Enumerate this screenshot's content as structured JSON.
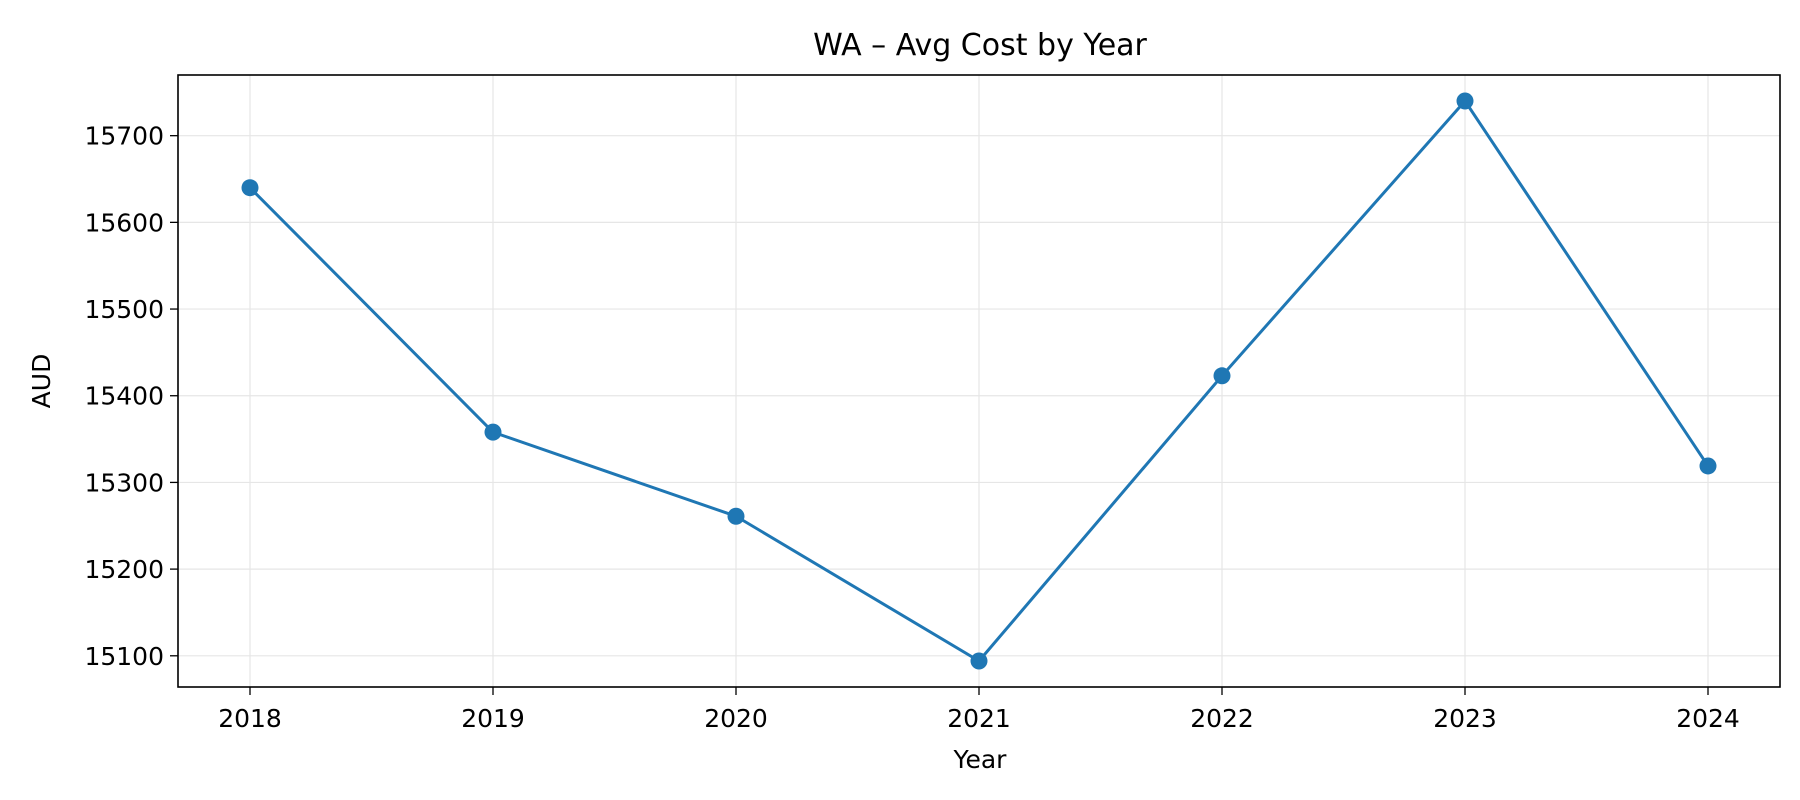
{
  "chart_data": {
    "type": "line",
    "title": "WA – Avg Cost by Year",
    "xlabel": "Year",
    "ylabel": "AUD",
    "categories": [
      "2018",
      "2019",
      "2020",
      "2021",
      "2022",
      "2023",
      "2024"
    ],
    "series": [
      {
        "values": [
          15640,
          15358,
          15261,
          15094,
          15423,
          15740,
          15319
        ]
      }
    ],
    "y_ticks": [
      15100,
      15200,
      15300,
      15400,
      15500,
      15600,
      15700
    ],
    "y_tick_labels": [
      "15100",
      "15200",
      "15300",
      "15400",
      "15500",
      "15600",
      "15700"
    ],
    "ylim": [
      15064,
      15770
    ],
    "grid": true,
    "legend": false,
    "line_color": "#1f77b4",
    "marker": "circle"
  }
}
